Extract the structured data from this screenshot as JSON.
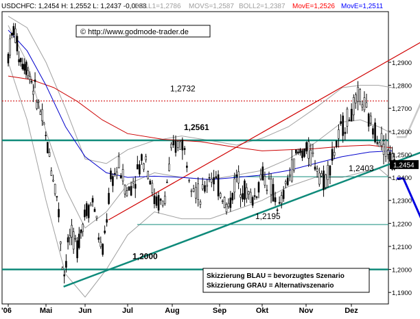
{
  "chart_data": {
    "type": "candlestick",
    "header": {
      "symbol": "USDCHF",
      "ohlc": "C: 1,2454 H: 1,2552 L: 1,2437 -0,0088",
      "indicators": [
        {
          "label": "BOLL1=1,2786",
          "color": "#9e9e9e"
        },
        {
          "label": "MOVS=1,2587",
          "color": "#9e9e9e"
        },
        {
          "label": "BOLL2=1,2387",
          "color": "#9e9e9e"
        },
        {
          "label": "MovE=1,2526",
          "color": "#ff0000"
        },
        {
          "label": "MovE=1,2511",
          "color": "#0000ff"
        }
      ]
    },
    "credit": "© http://www.godmode-trader.de",
    "y_axis": {
      "min": 1.185,
      "max": 1.312,
      "ticks": [
        "1,2900",
        "1,2800",
        "1,2700",
        "1,2600",
        "1,2500",
        "1,2400",
        "1,2300",
        "1,2200",
        "1,2100",
        "1,2000",
        "1,1900"
      ],
      "tick_values": [
        1.29,
        1.28,
        1.27,
        1.26,
        1.25,
        1.24,
        1.23,
        1.22,
        1.21,
        1.2,
        1.19
      ],
      "current_label": "1,2454",
      "current_value": 1.2454
    },
    "x_axis": {
      "labels": [
        "'06",
        "Mai",
        "Jun",
        "Jul",
        "Aug",
        "Sep",
        "Okt",
        "Nov",
        "Dez"
      ]
    },
    "horizontal_levels": [
      {
        "label": "1,2732",
        "value": 1.2732,
        "style": "red-dotted"
      },
      {
        "label": "1,2561",
        "value": 1.2561,
        "style": "teal-thick",
        "bold": true
      },
      {
        "label": "1,2403",
        "value": 1.2403,
        "style": "teal-thin"
      },
      {
        "label": "1,2195",
        "value": 1.2195,
        "style": "teal-thin"
      },
      {
        "label": "1,2000",
        "value": 1.2,
        "style": "teal-thick",
        "bold": true
      }
    ],
    "trendlines": [
      {
        "name": "upper-channel",
        "color": "#d00000",
        "from": [
          2.55,
          1.2215
        ],
        "to": [
          10.05,
          1.3045
        ]
      },
      {
        "name": "ascending-support",
        "color": "#0f8a7a",
        "from": [
          1.45,
          1.1925
        ],
        "to": [
          10.3,
          1.2565
        ]
      }
    ],
    "moving_averages": [
      {
        "name": "MovE-red",
        "color": "#cc0000",
        "points": [
          [
            0,
            1.284
          ],
          [
            0.6,
            1.2825
          ],
          [
            1.2,
            1.279
          ],
          [
            1.8,
            1.273
          ],
          [
            2.4,
            1.265
          ],
          [
            3.0,
            1.259
          ],
          [
            3.8,
            1.2565
          ],
          [
            4.6,
            1.2555
          ],
          [
            5.4,
            1.253
          ],
          [
            6.0,
            1.2515
          ],
          [
            6.6,
            1.252
          ],
          [
            7.2,
            1.2525
          ],
          [
            7.8,
            1.2535
          ],
          [
            8.4,
            1.254
          ],
          [
            8.9,
            1.2528
          ]
        ]
      },
      {
        "name": "MovE-blue",
        "color": "#0000cc",
        "points": [
          [
            0,
            1.304
          ],
          [
            0.5,
            1.295
          ],
          [
            1.0,
            1.28
          ],
          [
            1.5,
            1.262
          ],
          [
            2.0,
            1.249
          ],
          [
            2.5,
            1.242
          ],
          [
            3.0,
            1.24
          ],
          [
            3.6,
            1.2405
          ],
          [
            4.2,
            1.24
          ],
          [
            4.8,
            1.239
          ],
          [
            5.4,
            1.24
          ],
          [
            6.0,
            1.241
          ],
          [
            6.6,
            1.243
          ],
          [
            7.2,
            1.246
          ],
          [
            7.8,
            1.249
          ],
          [
            8.4,
            1.251
          ],
          [
            8.9,
            1.2515
          ]
        ]
      }
    ],
    "bollinger": {
      "color": "#a0a0a0",
      "upper": [
        [
          0,
          1.31
        ],
        [
          0.5,
          1.305
        ],
        [
          1.0,
          1.29
        ],
        [
          1.5,
          1.27
        ],
        [
          2.0,
          1.248
        ],
        [
          2.5,
          1.246
        ],
        [
          3.0,
          1.252
        ],
        [
          3.6,
          1.256
        ],
        [
          4.2,
          1.258
        ],
        [
          4.8,
          1.256
        ],
        [
          5.4,
          1.254
        ],
        [
          6.0,
          1.257
        ],
        [
          6.6,
          1.262
        ],
        [
          7.2,
          1.27
        ],
        [
          7.8,
          1.279
        ],
        [
          8.2,
          1.28
        ],
        [
          8.6,
          1.28
        ],
        [
          8.9,
          1.279
        ]
      ],
      "middle": [
        [
          0,
          1.306
        ],
        [
          0.5,
          1.29
        ],
        [
          1.0,
          1.26
        ],
        [
          1.5,
          1.235
        ],
        [
          2.0,
          1.218
        ],
        [
          2.5,
          1.225
        ],
        [
          3.0,
          1.237
        ],
        [
          3.6,
          1.242
        ],
        [
          4.2,
          1.24
        ],
        [
          4.8,
          1.239
        ],
        [
          5.4,
          1.241
        ],
        [
          6.0,
          1.243
        ],
        [
          6.6,
          1.248
        ],
        [
          7.2,
          1.255
        ],
        [
          7.8,
          1.264
        ],
        [
          8.2,
          1.265
        ],
        [
          8.6,
          1.262
        ],
        [
          8.9,
          1.259
        ]
      ],
      "lower": [
        [
          0,
          1.29
        ],
        [
          0.5,
          1.265
        ],
        [
          1.0,
          1.23
        ],
        [
          1.5,
          1.198
        ],
        [
          2.0,
          1.188
        ],
        [
          2.5,
          1.2
        ],
        [
          3.0,
          1.215
        ],
        [
          3.6,
          1.225
        ],
        [
          4.2,
          1.222
        ],
        [
          4.8,
          1.222
        ],
        [
          5.4,
          1.226
        ],
        [
          6.0,
          1.23
        ],
        [
          6.6,
          1.236
        ],
        [
          7.2,
          1.24
        ],
        [
          7.8,
          1.24
        ],
        [
          8.2,
          1.242
        ],
        [
          8.6,
          1.244
        ],
        [
          8.9,
          1.239
        ]
      ]
    },
    "price_path": [
      [
        0,
        1.293
      ],
      [
        0.15,
        1.305
      ],
      [
        0.3,
        1.292
      ],
      [
        0.5,
        1.288
      ],
      [
        0.7,
        1.278
      ],
      [
        0.9,
        1.265
      ],
      [
        1.1,
        1.248
      ],
      [
        1.3,
        1.23
      ],
      [
        1.45,
        1.196
      ],
      [
        1.6,
        1.215
      ],
      [
        1.8,
        1.21
      ],
      [
        2.0,
        1.225
      ],
      [
        2.2,
        1.23
      ],
      [
        2.4,
        1.205
      ],
      [
        2.6,
        1.238
      ],
      [
        2.8,
        1.245
      ],
      [
        3.0,
        1.233
      ],
      [
        3.2,
        1.242
      ],
      [
        3.4,
        1.25
      ],
      [
        3.6,
        1.23
      ],
      [
        3.8,
        1.228
      ],
      [
        4.0,
        1.252
      ],
      [
        4.2,
        1.256
      ],
      [
        4.4,
        1.24
      ],
      [
        4.6,
        1.23
      ],
      [
        4.8,
        1.242
      ],
      [
        5.0,
        1.235
      ],
      [
        5.2,
        1.226
      ],
      [
        5.4,
        1.24
      ],
      [
        5.6,
        1.234
      ],
      [
        5.8,
        1.23
      ],
      [
        6.0,
        1.242
      ],
      [
        6.2,
        1.235
      ],
      [
        6.4,
        1.226
      ],
      [
        6.6,
        1.24
      ],
      [
        6.8,
        1.25
      ],
      [
        7.0,
        1.252
      ],
      [
        7.2,
        1.247
      ],
      [
        7.4,
        1.238
      ],
      [
        7.6,
        1.25
      ],
      [
        7.8,
        1.262
      ],
      [
        8.0,
        1.268
      ],
      [
        8.2,
        1.276
      ],
      [
        8.4,
        1.264
      ],
      [
        8.6,
        1.258
      ],
      [
        8.8,
        1.252
      ],
      [
        8.95,
        1.2454
      ]
    ],
    "candle_count": 190,
    "scenarios": [
      {
        "name": "blue",
        "color": "#0000e0",
        "points": [
          [
            9.0,
            1.2395
          ],
          [
            9.15,
            1.2395
          ],
          [
            9.6,
            1.2195
          ],
          [
            10.0,
            1.2305
          ],
          [
            10.75,
            1.2
          ],
          [
            10.95,
            1.2065
          ]
        ]
      },
      {
        "name": "grey",
        "color": "#c8c8c8",
        "points": [
          [
            9.0,
            1.2575
          ],
          [
            9.2,
            1.2575
          ],
          [
            9.55,
            1.273
          ],
          [
            9.75,
            1.273
          ],
          [
            9.6,
            1.2745
          ],
          [
            10.3,
            1.3
          ]
        ]
      }
    ],
    "legend_lines": [
      "Skizzierung BLAU = bevorzugtes Szenario",
      "Skizzierung GRAU = Alternativszenario"
    ]
  }
}
